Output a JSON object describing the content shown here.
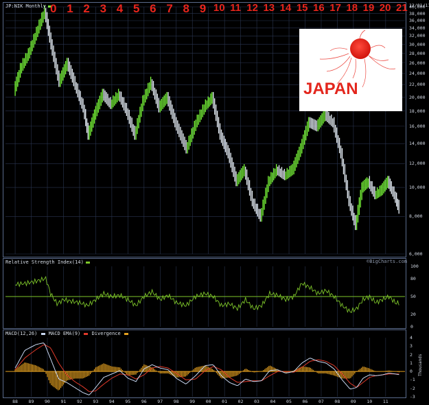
{
  "header": {
    "symbol_label": "JP:NIK Monthly",
    "date_label": "12/01/11",
    "overlay_year_numbers": [
      "0",
      "1",
      "2",
      "3",
      "4",
      "5",
      "6",
      "7",
      "8",
      "9",
      "10",
      "11",
      "12",
      "13",
      "14",
      "15",
      "16",
      "17",
      "18",
      "19",
      "20",
      "21"
    ]
  },
  "japan_badge": {
    "text": "JAPAN"
  },
  "price_panel": {
    "y_ticks": [
      "40,000",
      "38,000",
      "36,000",
      "34,000",
      "32,000",
      "30,000",
      "28,000",
      "26,000",
      "24,000",
      "22,000",
      "20,000",
      "18,000",
      "16,000",
      "14,000",
      "12,000",
      "10,000",
      "8,000",
      "6,000"
    ],
    "watermark": "©BigCharts.com"
  },
  "rsi_panel": {
    "label": "Relative Strength Index(14)",
    "y_ticks": [
      "100",
      "80",
      "50",
      "20",
      "0"
    ]
  },
  "macd_panel": {
    "labels": [
      "MACD(12,26)",
      "MACD EMA(9)",
      "Divergence"
    ],
    "y_ticks": [
      "4",
      "3",
      "2",
      "1",
      "0",
      "-1",
      "-2",
      "-3"
    ],
    "axis_unit": "Thousands"
  },
  "x_ticks": [
    "88",
    "89",
    "90",
    "91",
    "92",
    "93",
    "94",
    "95",
    "96",
    "97",
    "98",
    "99",
    "00",
    "01",
    "02",
    "03",
    "04",
    "05",
    "06",
    "07",
    "08",
    "09",
    "10",
    "11"
  ],
  "colors": {
    "up_bar": "#7cff3a",
    "down_bar": "#eef6ff",
    "rsi_line": "#7ec62a",
    "macd_line": "#c8d6f0",
    "ema_line": "#e03a2a",
    "divergence": "#e4a020",
    "overlay_numbers": "#e8251c"
  },
  "chart_data": [
    {
      "type": "line",
      "series": [
        {
          "values": [
            [
              1988.0,
              21000
            ],
            [
              1988.4,
              25000
            ],
            [
              1988.9,
              28000
            ],
            [
              1989.4,
              33000
            ],
            [
              1989.9,
              38900
            ],
            [
              1990.3,
              30000
            ],
            [
              1990.8,
              22500
            ],
            [
              1991.3,
              26000
            ],
            [
              1991.8,
              22000
            ],
            [
              1992.3,
              18500
            ],
            [
              1992.6,
              15000
            ],
            [
              1993.0,
              17500
            ],
            [
              1993.5,
              20500
            ],
            [
              1994.0,
              19000
            ],
            [
              1994.5,
              20500
            ],
            [
              1995.0,
              18000
            ],
            [
              1995.5,
              15000
            ],
            [
              1996.0,
              19500
            ],
            [
              1996.5,
              22500
            ],
            [
              1997.0,
              18500
            ],
            [
              1997.5,
              20000
            ],
            [
              1998.0,
              16500
            ],
            [
              1998.7,
              13500
            ],
            [
              1999.3,
              16500
            ],
            [
              1999.9,
              18900
            ],
            [
              2000.3,
              20000
            ],
            [
              2000.8,
              15000
            ],
            [
              2001.3,
              13000
            ],
            [
              2001.8,
              10500
            ],
            [
              2002.3,
              11500
            ],
            [
              2002.8,
              9000
            ],
            [
              2003.3,
              8000
            ],
            [
              2003.8,
              10500
            ],
            [
              2004.3,
              11500
            ],
            [
              2004.8,
              11000
            ],
            [
              2005.3,
              11500
            ],
            [
              2005.8,
              13500
            ],
            [
              2006.3,
              16500
            ],
            [
              2006.8,
              16000
            ],
            [
              2007.3,
              17500
            ],
            [
              2007.8,
              16500
            ],
            [
              2008.3,
              13000
            ],
            [
              2008.8,
              9000
            ],
            [
              2009.2,
              7500
            ],
            [
              2009.6,
              10000
            ],
            [
              2010.0,
              10500
            ],
            [
              2010.4,
              9500
            ],
            [
              2010.8,
              9800
            ],
            [
              2011.2,
              10500
            ],
            [
              2011.6,
              9500
            ],
            [
              2011.9,
              8500
            ]
          ]
        }
      ],
      "ylim": [
        6000,
        40000
      ],
      "xlim": [
        1987.4,
        2012.2
      ],
      "y_scale": "log"
    },
    {
      "type": "line",
      "title": "Relative Strength Index(14)",
      "series": [
        {
          "values": [
            [
              1988.0,
              70
            ],
            [
              1988.7,
              72
            ],
            [
              1989.4,
              76
            ],
            [
              1989.9,
              80
            ],
            [
              1990.2,
              55
            ],
            [
              1990.6,
              38
            ],
            [
              1991.0,
              45
            ],
            [
              1991.5,
              42
            ],
            [
              1992.0,
              40
            ],
            [
              1992.5,
              35
            ],
            [
              1993.0,
              45
            ],
            [
              1993.5,
              55
            ],
            [
              1994.0,
              50
            ],
            [
              1994.5,
              52
            ],
            [
              1995.0,
              45
            ],
            [
              1995.5,
              35
            ],
            [
              1996.0,
              50
            ],
            [
              1996.5,
              58
            ],
            [
              1997.0,
              45
            ],
            [
              1997.5,
              52
            ],
            [
              1998.0,
              40
            ],
            [
              1998.6,
              35
            ],
            [
              1999.2,
              50
            ],
            [
              1999.8,
              55
            ],
            [
              2000.3,
              50
            ],
            [
              2000.8,
              35
            ],
            [
              2001.3,
              38
            ],
            [
              2001.8,
              30
            ],
            [
              2002.3,
              45
            ],
            [
              2002.8,
              30
            ],
            [
              2003.3,
              35
            ],
            [
              2003.8,
              55
            ],
            [
              2004.3,
              52
            ],
            [
              2004.8,
              45
            ],
            [
              2005.3,
              50
            ],
            [
              2005.8,
              72
            ],
            [
              2006.3,
              65
            ],
            [
              2006.8,
              55
            ],
            [
              2007.3,
              60
            ],
            [
              2007.8,
              50
            ],
            [
              2008.3,
              35
            ],
            [
              2008.8,
              25
            ],
            [
              2009.2,
              30
            ],
            [
              2009.6,
              45
            ],
            [
              2010.0,
              50
            ],
            [
              2010.4,
              40
            ],
            [
              2010.8,
              45
            ],
            [
              2011.2,
              50
            ],
            [
              2011.6,
              40
            ],
            [
              2011.9,
              38
            ]
          ]
        }
      ],
      "ylim": [
        0,
        100
      ]
    },
    {
      "type": "line",
      "series": [
        {
          "name": "MACD(12,26)",
          "values": [
            [
              1988.0,
              0.4
            ],
            [
              1988.6,
              2.5
            ],
            [
              1989.3,
              3.2
            ],
            [
              1989.8,
              3.4
            ],
            [
              1990.2,
              1.5
            ],
            [
              1990.7,
              -0.9
            ],
            [
              1991.2,
              -1.3
            ],
            [
              1991.7,
              -1.9
            ],
            [
              1992.2,
              -2.5
            ],
            [
              1992.6,
              -2.8
            ],
            [
              1993.0,
              -1.9
            ],
            [
              1993.5,
              -0.7
            ],
            [
              1994.0,
              -0.3
            ],
            [
              1994.5,
              0.1
            ],
            [
              1995.0,
              -0.8
            ],
            [
              1995.5,
              -1.2
            ],
            [
              1996.0,
              0.3
            ],
            [
              1996.5,
              0.8
            ],
            [
              1997.0,
              0.4
            ],
            [
              1997.5,
              0.2
            ],
            [
              1998.0,
              -0.8
            ],
            [
              1998.6,
              -1.5
            ],
            [
              1999.2,
              -0.5
            ],
            [
              1999.8,
              0.7
            ],
            [
              2000.3,
              0.8
            ],
            [
              2000.8,
              -0.5
            ],
            [
              2001.3,
              -1.3
            ],
            [
              2001.8,
              -1.7
            ],
            [
              2002.3,
              -0.9
            ],
            [
              2002.8,
              -1.2
            ],
            [
              2003.3,
              -1.1
            ],
            [
              2003.8,
              0.1
            ],
            [
              2004.3,
              0.2
            ],
            [
              2004.8,
              -0.2
            ],
            [
              2005.3,
              0.0
            ],
            [
              2005.8,
              1.0
            ],
            [
              2006.3,
              1.6
            ],
            [
              2006.8,
              1.2
            ],
            [
              2007.3,
              1.0
            ],
            [
              2007.8,
              0.3
            ],
            [
              2008.3,
              -1.0
            ],
            [
              2008.8,
              -2.1
            ],
            [
              2009.2,
              -1.9
            ],
            [
              2009.6,
              -0.8
            ],
            [
              2010.0,
              -0.4
            ],
            [
              2010.4,
              -0.5
            ],
            [
              2010.8,
              -0.4
            ],
            [
              2011.2,
              -0.2
            ],
            [
              2011.6,
              -0.3
            ],
            [
              2011.9,
              -0.4
            ]
          ]
        },
        {
          "name": "MACD EMA(9)",
          "values": [
            [
              1988.0,
              0.2
            ],
            [
              1988.6,
              1.6
            ],
            [
              1989.3,
              2.6
            ],
            [
              1989.8,
              3.2
            ],
            [
              1990.2,
              2.8
            ],
            [
              1990.7,
              1.0
            ],
            [
              1991.2,
              -0.4
            ],
            [
              1991.7,
              -1.2
            ],
            [
              1992.2,
              -1.8
            ],
            [
              1992.6,
              -2.4
            ],
            [
              1993.0,
              -2.3
            ],
            [
              1993.5,
              -1.5
            ],
            [
              1994.0,
              -0.8
            ],
            [
              1994.5,
              -0.3
            ],
            [
              1995.0,
              -0.4
            ],
            [
              1995.5,
              -0.9
            ],
            [
              1996.0,
              -0.4
            ],
            [
              1996.5,
              0.4
            ],
            [
              1997.0,
              0.6
            ],
            [
              1997.5,
              0.4
            ],
            [
              1998.0,
              -0.2
            ],
            [
              1998.6,
              -1.0
            ],
            [
              1999.2,
              -0.9
            ],
            [
              1999.8,
              0.1
            ],
            [
              2000.3,
              0.6
            ],
            [
              2000.8,
              0.2
            ],
            [
              2001.3,
              -0.7
            ],
            [
              2001.8,
              -1.3
            ],
            [
              2002.3,
              -1.2
            ],
            [
              2002.8,
              -1.1
            ],
            [
              2003.3,
              -1.1
            ],
            [
              2003.8,
              -0.5
            ],
            [
              2004.3,
              0.0
            ],
            [
              2004.8,
              0.0
            ],
            [
              2005.3,
              -0.1
            ],
            [
              2005.8,
              0.5
            ],
            [
              2006.3,
              1.2
            ],
            [
              2006.8,
              1.4
            ],
            [
              2007.3,
              1.2
            ],
            [
              2007.8,
              0.7
            ],
            [
              2008.3,
              -0.3
            ],
            [
              2008.8,
              -1.4
            ],
            [
              2009.2,
              -1.9
            ],
            [
              2009.6,
              -1.3
            ],
            [
              2010.0,
              -0.7
            ],
            [
              2010.4,
              -0.5
            ],
            [
              2010.8,
              -0.4
            ],
            [
              2011.2,
              -0.3
            ],
            [
              2011.6,
              -0.3
            ],
            [
              2011.9,
              -0.3
            ]
          ]
        }
      ],
      "ylim": [
        -3,
        4
      ]
    }
  ]
}
